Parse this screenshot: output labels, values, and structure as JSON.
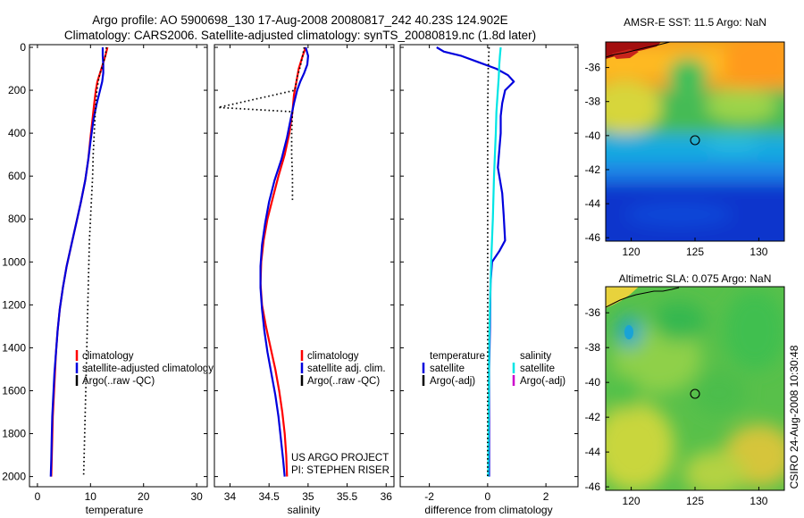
{
  "header": {
    "line1": "Argo profile: AO 5900698_130 17-Aug-2008 20080817_242 40.23S 124.902E",
    "line2": "Climatology: CARS2006. Satellite-adjusted climatology: synTS_20080819.nc (1.8d later)"
  },
  "side_stamp": "CSIRO 24-Aug-2008 10:30:48",
  "project_note": {
    "line1": "US ARGO PROJECT",
    "line2": "PI: STEPHEN RISER"
  },
  "colors": {
    "climatology": "#ff0000",
    "satellite": "#0000dd",
    "satellite_diff": "#00e5e5",
    "argo": "#000000",
    "argo_salinity_diff": "#cc00cc"
  },
  "chart_data": [
    {
      "type": "line",
      "xlabel": "temperature",
      "ylim": [
        2050,
        0
      ],
      "xlim": [
        -1.5,
        32
      ],
      "xticks": [
        0,
        10,
        20,
        30
      ],
      "yticks": [
        0,
        200,
        400,
        600,
        800,
        1000,
        1200,
        1400,
        1600,
        1800,
        2000
      ],
      "series": [
        {
          "name": "climatology",
          "color": "#ff0000",
          "style": "solid",
          "points": [
            [
              13.2,
              0
            ],
            [
              12.8,
              40
            ],
            [
              12.3,
              80
            ],
            [
              11.8,
              120
            ],
            [
              11.3,
              160
            ],
            [
              11.0,
              200
            ],
            [
              10.7,
              260
            ],
            [
              10.4,
              330
            ],
            [
              10.0,
              420
            ],
            [
              9.6,
              520
            ],
            [
              9.0,
              620
            ],
            [
              8.2,
              720
            ],
            [
              7.3,
              820
            ],
            [
              6.4,
              920
            ],
            [
              5.5,
              1020
            ],
            [
              4.8,
              1120
            ],
            [
              4.2,
              1220
            ],
            [
              3.8,
              1320
            ],
            [
              3.5,
              1420
            ],
            [
              3.3,
              1520
            ],
            [
              3.1,
              1620
            ],
            [
              2.9,
              1720
            ],
            [
              2.8,
              1820
            ],
            [
              2.7,
              1920
            ],
            [
              2.6,
              2000
            ]
          ]
        },
        {
          "name": "satellite-adjusted climatology",
          "color": "#0000dd",
          "style": "solid",
          "points": [
            [
              12.3,
              0
            ],
            [
              12.3,
              40
            ],
            [
              12.4,
              80
            ],
            [
              12.4,
              120
            ],
            [
              12.2,
              160
            ],
            [
              11.8,
              200
            ],
            [
              11.2,
              260
            ],
            [
              10.6,
              330
            ],
            [
              10.1,
              420
            ],
            [
              9.6,
              520
            ],
            [
              9.0,
              620
            ],
            [
              8.2,
              720
            ],
            [
              7.3,
              820
            ],
            [
              6.4,
              920
            ],
            [
              5.5,
              1020
            ],
            [
              4.8,
              1120
            ],
            [
              4.2,
              1220
            ],
            [
              3.8,
              1320
            ],
            [
              3.5,
              1420
            ],
            [
              3.2,
              1520
            ],
            [
              3.0,
              1620
            ],
            [
              2.8,
              1720
            ],
            [
              2.7,
              1820
            ],
            [
              2.6,
              1920
            ],
            [
              2.5,
              2000
            ]
          ]
        },
        {
          "name": "Argo(..raw -QC)",
          "color": "#000000",
          "style": "dotted",
          "points": [
            [
              13.0,
              0
            ],
            [
              12.8,
              40
            ],
            [
              12.3,
              80
            ],
            [
              11.6,
              140
            ],
            [
              11.2,
              200
            ],
            [
              10.9,
              300
            ],
            [
              10.7,
              400
            ],
            [
              10.5,
              500
            ],
            [
              10.4,
              600
            ],
            [
              10.2,
              700
            ],
            [
              10.0,
              800
            ],
            [
              9.8,
              900
            ],
            [
              9.7,
              1000
            ],
            [
              9.6,
              1100
            ],
            [
              9.5,
              1200
            ],
            [
              9.4,
              1300
            ],
            [
              9.3,
              1400
            ],
            [
              9.2,
              1500
            ],
            [
              9.1,
              1600
            ],
            [
              9.0,
              1700
            ],
            [
              8.9,
              1800
            ],
            [
              8.8,
              1900
            ],
            [
              8.7,
              2000
            ]
          ]
        }
      ],
      "legend": {
        "placement": "lower-right",
        "entries": [
          "climatology",
          "satellite-adjusted climatology",
          "Argo(..raw -QC)"
        ]
      }
    },
    {
      "type": "line",
      "xlabel": "salinity",
      "ylim": [
        2050,
        0
      ],
      "xlim": [
        33.8,
        36.1
      ],
      "xticks": [
        34,
        34.5,
        35,
        35.5,
        36
      ],
      "yticks": [
        0,
        200,
        400,
        600,
        800,
        1000,
        1200,
        1400,
        1600,
        1800,
        2000
      ],
      "series": [
        {
          "name": "climatology",
          "color": "#ff0000",
          "style": "solid",
          "points": [
            [
              34.97,
              0
            ],
            [
              34.93,
              40
            ],
            [
              34.88,
              100
            ],
            [
              34.85,
              160
            ],
            [
              34.82,
              220
            ],
            [
              34.8,
              300
            ],
            [
              34.76,
              400
            ],
            [
              34.7,
              500
            ],
            [
              34.62,
              600
            ],
            [
              34.55,
              700
            ],
            [
              34.48,
              800
            ],
            [
              34.43,
              900
            ],
            [
              34.4,
              1000
            ],
            [
              34.39,
              1100
            ],
            [
              34.41,
              1200
            ],
            [
              34.46,
              1300
            ],
            [
              34.52,
              1400
            ],
            [
              34.58,
              1500
            ],
            [
              34.63,
              1600
            ],
            [
              34.67,
              1700
            ],
            [
              34.7,
              1800
            ],
            [
              34.72,
              1900
            ],
            [
              34.73,
              2000
            ]
          ]
        },
        {
          "name": "satellite adj. clim.",
          "color": "#0000dd",
          "style": "solid",
          "points": [
            [
              34.97,
              0
            ],
            [
              35.0,
              40
            ],
            [
              34.99,
              80
            ],
            [
              34.95,
              120
            ],
            [
              34.9,
              160
            ],
            [
              34.86,
              200
            ],
            [
              34.82,
              260
            ],
            [
              34.78,
              330
            ],
            [
              34.73,
              420
            ],
            [
              34.66,
              520
            ],
            [
              34.57,
              620
            ],
            [
              34.5,
              720
            ],
            [
              34.45,
              820
            ],
            [
              34.41,
              920
            ],
            [
              34.39,
              1020
            ],
            [
              34.39,
              1120
            ],
            [
              34.41,
              1220
            ],
            [
              34.44,
              1320
            ],
            [
              34.48,
              1420
            ],
            [
              34.53,
              1520
            ],
            [
              34.58,
              1620
            ],
            [
              34.62,
              1720
            ],
            [
              34.65,
              1820
            ],
            [
              34.68,
              1920
            ],
            [
              34.7,
              2000
            ]
          ]
        },
        {
          "name": "Argo(..raw -QC)",
          "color": "#000000",
          "style": "dotted",
          "points": [
            [
              34.95,
              0
            ],
            [
              34.93,
              40
            ],
            [
              34.9,
              90
            ],
            [
              34.86,
              140
            ],
            [
              34.84,
              180
            ],
            [
              34.83,
              200
            ],
            [
              33.85,
              280
            ],
            [
              34.8,
              300
            ],
            [
              34.79,
              400
            ],
            [
              34.79,
              500
            ],
            [
              34.8,
              600
            ],
            [
              34.8,
              720
            ]
          ]
        }
      ],
      "legend": {
        "placement": "lower-right",
        "entries": [
          "climatology",
          "satellite adj. clim.",
          "Argo(..raw -QC)"
        ]
      }
    },
    {
      "type": "line",
      "xlabel": "difference from climatology",
      "ylim": [
        2050,
        0
      ],
      "xlim": [
        -3,
        3.1
      ],
      "xticks": [
        -2,
        0,
        2
      ],
      "yticks": [
        0,
        200,
        400,
        600,
        800,
        1000,
        1200,
        1400,
        1600,
        1800,
        2000
      ],
      "series": [
        {
          "name": "temperature satellite",
          "color": "#0000dd",
          "style": "solid",
          "points": [
            [
              -1.75,
              0
            ],
            [
              -1.5,
              20
            ],
            [
              -0.9,
              40
            ],
            [
              -0.3,
              70
            ],
            [
              0.3,
              100
            ],
            [
              0.7,
              130
            ],
            [
              0.9,
              160
            ],
            [
              0.6,
              200
            ],
            [
              0.5,
              260
            ],
            [
              0.45,
              320
            ],
            [
              0.45,
              400
            ],
            [
              0.4,
              480
            ],
            [
              0.35,
              560
            ],
            [
              0.5,
              680
            ],
            [
              0.55,
              780
            ],
            [
              0.6,
              900
            ],
            [
              0.4,
              950
            ],
            [
              0.15,
              1000
            ],
            [
              0.1,
              1100
            ],
            [
              0.08,
              1300
            ],
            [
              0.05,
              1500
            ],
            [
              0.05,
              1700
            ],
            [
              0.05,
              1900
            ],
            [
              0.05,
              2000
            ]
          ]
        },
        {
          "name": "salinity satellite",
          "color": "#00e5e5",
          "style": "solid",
          "points": [
            [
              0.45,
              0
            ],
            [
              0.42,
              40
            ],
            [
              0.4,
              80
            ],
            [
              0.38,
              140
            ],
            [
              0.35,
              200
            ],
            [
              0.3,
              300
            ],
            [
              0.28,
              400
            ],
            [
              0.25,
              500
            ],
            [
              0.22,
              600
            ],
            [
              0.18,
              800
            ],
            [
              0.12,
              1000
            ],
            [
              0.08,
              1200
            ],
            [
              0.05,
              1400
            ],
            [
              0.04,
              1600
            ],
            [
              0.03,
              1800
            ],
            [
              0.02,
              2000
            ]
          ]
        },
        {
          "name": "temperature Argo(-adj)",
          "color": "#000000",
          "style": "dotted",
          "points": [
            [
              0.05,
              0
            ],
            [
              0.02,
              100
            ],
            [
              0.0,
              300
            ],
            [
              0.0,
              600
            ],
            [
              0.0,
              1000
            ],
            [
              0.0,
              1400
            ],
            [
              0.0,
              1800
            ],
            [
              0.0,
              2000
            ]
          ]
        }
      ],
      "legend": {
        "placement": "lower-center",
        "columns": [
          {
            "title": "temperature",
            "entries": [
              "satellite",
              "Argo(-adj)"
            ]
          },
          {
            "title": "salinity",
            "entries": [
              "satellite",
              "Argo(-adj)"
            ]
          }
        ]
      }
    },
    {
      "type": "heatmap",
      "title": "AMSR-E SST: 11.5 Argo: NaN",
      "xlim": [
        118,
        132
      ],
      "ylim": [
        -46.2,
        -34.5
      ],
      "xticks": [
        120,
        125,
        130
      ],
      "yticks": [
        -36,
        -38,
        -40,
        -42,
        -44,
        -46
      ],
      "ytick_labels": [
        "-36",
        "-38",
        "-40",
        "-42",
        "-44",
        "-46"
      ],
      "marker": {
        "lon": 124.902,
        "lat": -40.23
      }
    },
    {
      "type": "heatmap",
      "title": "Altimetric SLA: 0.075 Argo: NaN",
      "xlim": [
        118,
        132
      ],
      "ylim": [
        -46.2,
        -34.5
      ],
      "xticks": [
        120,
        125,
        130
      ],
      "yticks": [
        -36,
        -38,
        -40,
        -42,
        -44,
        -46
      ],
      "ytick_labels": [
        "-36",
        "-38",
        "-40",
        "-42",
        "-44",
        "-46"
      ],
      "marker": {
        "lon": 124.902,
        "lat": -40.23
      }
    }
  ]
}
